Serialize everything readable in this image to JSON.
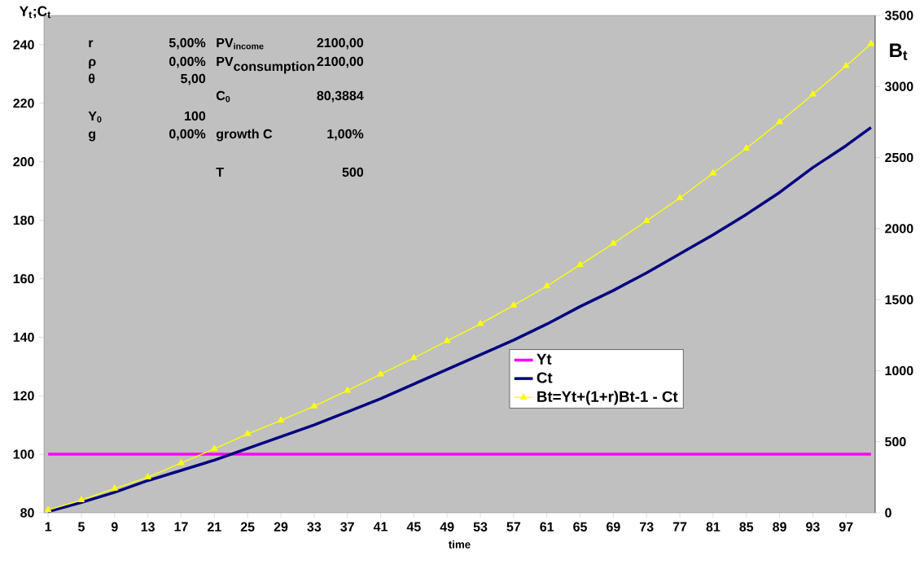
{
  "chart_data": {
    "type": "line",
    "xlabel": "time",
    "ylabel": "Y$_{t}$;C$_{t}$",
    "y2label": "B$_{t}$",
    "x": [
      1,
      5,
      9,
      13,
      17,
      21,
      25,
      29,
      33,
      37,
      41,
      45,
      49,
      53,
      57,
      61,
      65,
      69,
      73,
      77,
      81,
      85,
      89,
      93,
      97,
      100
    ],
    "series": [
      {
        "name": "Yt",
        "color": "#ff00ff",
        "marker": "none",
        "values": [
          100,
          100,
          100,
          100,
          100,
          100,
          100,
          100,
          100,
          100,
          100,
          100,
          100,
          100,
          100,
          100,
          100,
          100,
          100,
          100,
          100,
          100,
          100,
          100,
          100,
          100
        ]
      },
      {
        "name": "Ct",
        "color": "#000080",
        "marker": "none",
        "values": [
          80.4,
          83.5,
          87,
          91,
          94.5,
          98,
          102,
          106,
          110,
          114.5,
          119,
          124,
          129,
          134,
          139,
          144.5,
          150.5,
          156,
          162,
          168.5,
          175,
          182,
          189.5,
          198,
          205.5,
          211.7
        ]
      },
      {
        "name": "Bt=Yt+(1+r)Bt-1 - Ct",
        "color": "#ffff00",
        "marker": "triangle",
        "axis": "y2",
        "values": [
          20,
          90,
          171,
          250,
          350,
          450,
          555,
          650,
          750,
          860,
          975,
          1090,
          1210,
          1330,
          1460,
          1595,
          1745,
          1895,
          2055,
          2215,
          2390,
          2565,
          2750,
          2945,
          3145,
          3300
        ]
      }
    ],
    "xlim": [
      0.5,
      100.5
    ],
    "xticks": [
      1,
      5,
      9,
      13,
      17,
      21,
      25,
      29,
      33,
      37,
      41,
      45,
      49,
      53,
      57,
      61,
      65,
      69,
      73,
      77,
      81,
      85,
      89,
      93,
      97
    ],
    "ylim": [
      80,
      250
    ],
    "yticks": [
      80,
      100,
      120,
      140,
      160,
      180,
      200,
      220,
      240
    ],
    "y2lim": [
      0,
      3500
    ],
    "y2ticks": [
      0,
      500,
      1000,
      1500,
      2000,
      2500,
      3000,
      3500
    ],
    "grid": false,
    "legend": "right",
    "line_style": "solid",
    "annotations": [
      "r",
      "5,00%",
      "PV$_{income}$",
      "2100,00",
      "ρ",
      "0,00%",
      "\\textbf{PV}_{\\textbf{consumption}}",
      "2100,00",
      "θ",
      "5,00",
      "C$_{0}$",
      "80,3884",
      "Y$_{0}$",
      "100",
      "g",
      "0,00%",
      "growth C",
      "1,00%",
      "T",
      "500"
    ]
  }
}
